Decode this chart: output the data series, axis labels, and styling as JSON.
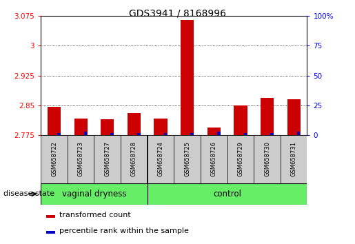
{
  "title": "GDS3941 / 8168996",
  "samples": [
    "GSM658722",
    "GSM658723",
    "GSM658727",
    "GSM658728",
    "GSM658724",
    "GSM658725",
    "GSM658726",
    "GSM658729",
    "GSM658730",
    "GSM658731"
  ],
  "transformed_count": [
    2.847,
    2.818,
    2.815,
    2.832,
    2.817,
    3.065,
    2.794,
    2.85,
    2.87,
    2.865
  ],
  "percentile_rank": [
    2,
    3,
    2,
    2,
    2,
    2,
    3,
    2,
    2,
    3
  ],
  "group_boundary": 4,
  "bar_color_red": "#cc0000",
  "bar_color_blue": "#0000cc",
  "ylim_left": [
    2.775,
    3.075
  ],
  "yticks_left": [
    2.775,
    2.85,
    2.925,
    3.0,
    3.075
  ],
  "ytick_labels_left": [
    "2.775",
    "2.85",
    "2.925",
    "3",
    "3.075"
  ],
  "ylim_right": [
    0,
    100
  ],
  "yticks_right": [
    0,
    25,
    50,
    75,
    100
  ],
  "ytick_labels_right": [
    "0",
    "25",
    "50",
    "75",
    "100%"
  ],
  "background_sample": "#cccccc",
  "green_color": "#66ee66",
  "legend_red": "transformed count",
  "legend_blue": "percentile rank within the sample",
  "disease_state_label": "disease state",
  "group1_label": "vaginal dryness",
  "group2_label": "control"
}
